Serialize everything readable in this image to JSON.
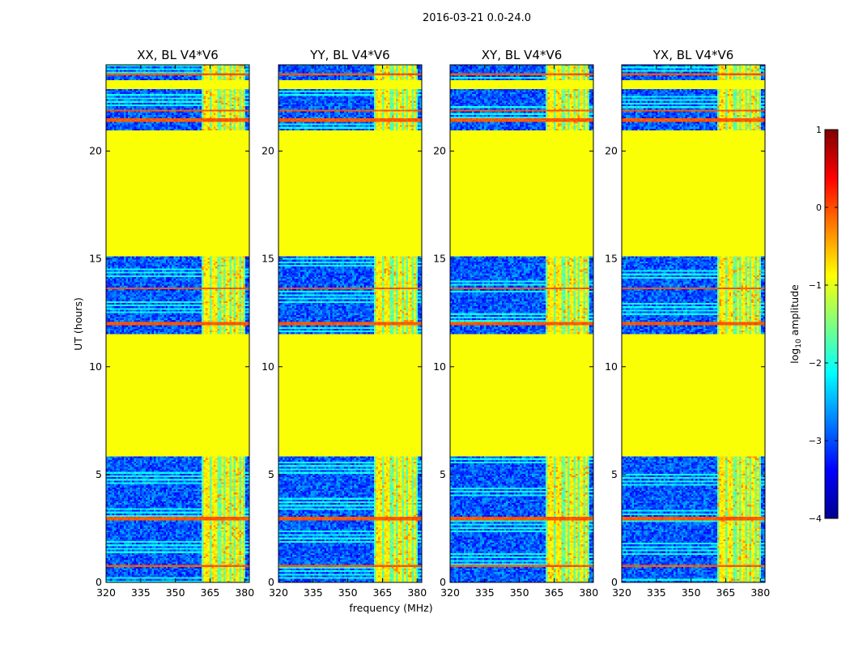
{
  "chart_data": {
    "type": "heatmap",
    "suptitle": "2016-03-21 0.0-24.0",
    "xlabel": "frequency (MHz)",
    "ylabel": "UT (hours)",
    "xlim": [
      320,
      382
    ],
    "ylim": [
      0,
      24
    ],
    "x_ticks": [
      320,
      335,
      350,
      365,
      380
    ],
    "y_ticks": [
      0,
      5,
      10,
      15,
      20
    ],
    "panels": [
      {
        "title": "XX, BL V4*V6",
        "polarization": "XX",
        "baseline": "V4*V6"
      },
      {
        "title": "YY, BL V4*V6",
        "polarization": "YY",
        "baseline": "V4*V6"
      },
      {
        "title": "XY, BL V4*V6",
        "polarization": "XY",
        "baseline": "V4*V6"
      },
      {
        "title": "YX, BL V4*V6",
        "polarization": "YX",
        "baseline": "V4*V6"
      }
    ],
    "colorbar": {
      "label_main": "log",
      "label_sub": "10",
      "label_rest": " amplitude",
      "colormap": "jet",
      "range": [
        -4,
        1
      ],
      "ticks": [
        -4,
        -3,
        -2,
        -1,
        0,
        1
      ],
      "tick_labels": [
        "−4",
        "−3",
        "−2",
        "−1",
        "0",
        "1"
      ]
    },
    "masked_level": -0.9,
    "flagged_time_ranges_hours": [
      [
        5.85,
        11.55
      ],
      [
        15.15,
        20.95
      ],
      [
        22.85,
        23.25
      ]
    ],
    "rfi_frequency_band_mhz": [
      361.5,
      380
    ],
    "rfi_channels_mhz": [
      362.5,
      363.5,
      364.5,
      366.5,
      368.0,
      370.5,
      372.5,
      374.5,
      377.0,
      379.0
    ],
    "rfi_time_lines_hours": [
      0.75,
      2.95,
      11.95,
      12.05,
      13.65,
      21.45,
      21.9,
      23.55
    ]
  }
}
